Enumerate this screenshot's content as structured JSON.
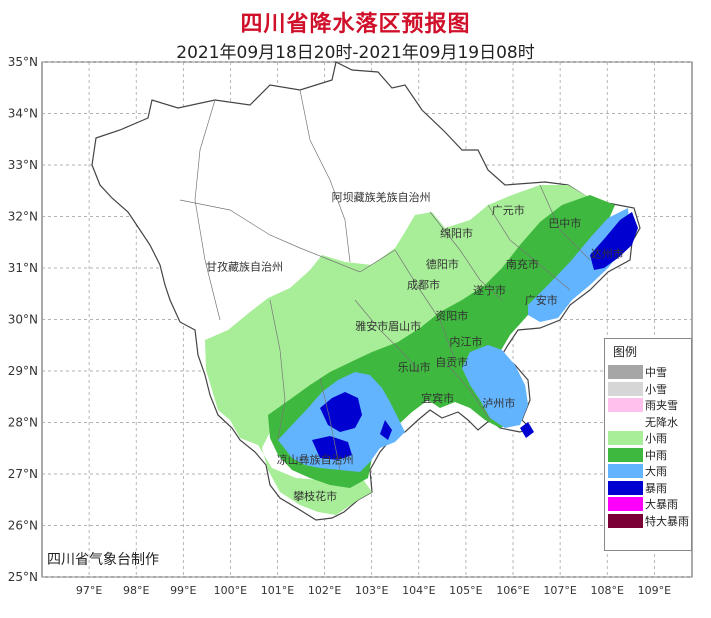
{
  "title": "四川省降水落区预报图",
  "subtitle": "2021年09月18日20时-2021年09月19日08时",
  "credit": "四川省气象台制作",
  "axes": {
    "y_labels": [
      "35°N",
      "34°N",
      "33°N",
      "32°N",
      "31°N",
      "30°N",
      "29°N",
      "28°N",
      "27°N",
      "26°N",
      "25°N"
    ],
    "x_labels": [
      "97°E",
      "98°E",
      "99°E",
      "100°E",
      "101°E",
      "102°E",
      "103°E",
      "104°E",
      "105°E",
      "106°E",
      "107°E",
      "108°E",
      "109°E"
    ]
  },
  "places": [
    {
      "name": "阿坝藏族羌族自治州",
      "lon": 103.2,
      "lat": 32.3
    },
    {
      "name": "甘孜藏族自治州",
      "lon": 100.3,
      "lat": 30.95
    },
    {
      "name": "广元市",
      "lon": 105.9,
      "lat": 32.05
    },
    {
      "name": "巴中市",
      "lon": 107.1,
      "lat": 31.8
    },
    {
      "name": "绵阳市",
      "lon": 104.8,
      "lat": 31.6
    },
    {
      "name": "达州市",
      "lon": 108.0,
      "lat": 31.2
    },
    {
      "name": "德阳市",
      "lon": 104.5,
      "lat": 31.0
    },
    {
      "name": "南充市",
      "lon": 106.2,
      "lat": 31.0
    },
    {
      "name": "成都市",
      "lon": 104.1,
      "lat": 30.6
    },
    {
      "name": "遂宁市",
      "lon": 105.5,
      "lat": 30.5
    },
    {
      "name": "广安市",
      "lon": 106.6,
      "lat": 30.3
    },
    {
      "name": "资阳市",
      "lon": 104.7,
      "lat": 30.0
    },
    {
      "name": "雅安市",
      "lon": 103.0,
      "lat": 29.8
    },
    {
      "name": "眉山市",
      "lon": 103.7,
      "lat": 29.8
    },
    {
      "name": "遂宁市",
      "lon": 105.5,
      "lat": 30.5
    },
    {
      "name": "内江市",
      "lon": 105.0,
      "lat": 29.5
    },
    {
      "name": "乐山市",
      "lon": 103.9,
      "lat": 29.0
    },
    {
      "name": "自贡市",
      "lon": 104.7,
      "lat": 29.1
    },
    {
      "name": "宜宾市",
      "lon": 104.4,
      "lat": 28.4
    },
    {
      "name": "泸州市",
      "lon": 105.7,
      "lat": 28.3
    },
    {
      "name": "凉山彝族自治州",
      "lon": 101.8,
      "lat": 27.2
    },
    {
      "name": "攀枝花市",
      "lon": 101.8,
      "lat": 26.5
    }
  ],
  "legend": {
    "title": "图例",
    "items": [
      {
        "label": "中雪",
        "color": "#a6a6a6"
      },
      {
        "label": "小雪",
        "color": "#d6d6d6"
      },
      {
        "label": "雨夹雪",
        "color": "#ffc0ee"
      },
      {
        "label": "无降水",
        "color": "#ffffff"
      },
      {
        "label": "小雨",
        "color": "#a8ee98"
      },
      {
        "label": "中雨",
        "color": "#3eb83e"
      },
      {
        "label": "大雨",
        "color": "#63b4ff"
      },
      {
        "label": "暴雨",
        "color": "#0000d0"
      },
      {
        "label": "大暴雨",
        "color": "#ff00ff"
      },
      {
        "label": "特大暴雨",
        "color": "#7a0035"
      }
    ]
  },
  "colors": {
    "light_rain": "#a8ee98",
    "moderate_rain": "#3eb83e",
    "heavy_rain": "#63b4ff",
    "rainstorm": "#0000d0",
    "title": "#d0102a"
  }
}
